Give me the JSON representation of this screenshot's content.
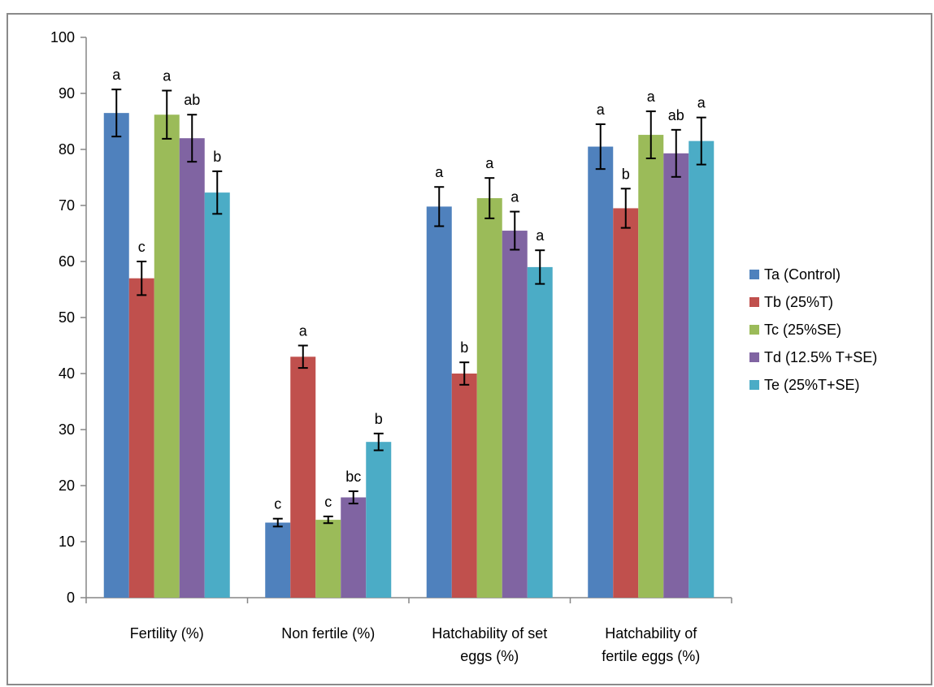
{
  "chart_data": {
    "type": "bar",
    "ylim": [
      0,
      100
    ],
    "yticks": [
      0,
      10,
      20,
      30,
      40,
      50,
      60,
      70,
      80,
      90,
      100
    ],
    "grid": false,
    "legend_position": "right",
    "categories": [
      [
        "Fertility (%)"
      ],
      [
        "Non fertile (%)"
      ],
      [
        "Hatchability of set",
        "eggs (%)"
      ],
      [
        "Hatchability of",
        "fertile eggs (%)"
      ]
    ],
    "series": [
      {
        "name": "Ta (Control)",
        "color": "#4f81bd",
        "values": [
          86.5,
          13.4,
          69.8,
          80.5
        ],
        "errors": [
          4.2,
          0.7,
          3.5,
          4.0
        ],
        "labels": [
          "a",
          "c",
          "a",
          "a"
        ]
      },
      {
        "name": "Tb (25%T)",
        "color": "#c0504d",
        "values": [
          57.0,
          43.0,
          40.0,
          69.5
        ],
        "errors": [
          3.0,
          2.0,
          2.0,
          3.5
        ],
        "labels": [
          "c",
          "a",
          "b",
          "b"
        ]
      },
      {
        "name": "Tc (25%SE)",
        "color": "#9bbb59",
        "values": [
          86.2,
          13.9,
          71.3,
          82.6
        ],
        "errors": [
          4.3,
          0.6,
          3.6,
          4.2
        ],
        "labels": [
          "a",
          "c",
          "a",
          "a"
        ]
      },
      {
        "name": "Td (12.5% T+SE)",
        "color": "#8064a2",
        "values": [
          82.0,
          17.9,
          65.5,
          79.3
        ],
        "errors": [
          4.2,
          1.1,
          3.4,
          4.2
        ],
        "labels": [
          "ab",
          "bc",
          "a",
          "ab"
        ]
      },
      {
        "name": "Te (25%T+SE)",
        "color": "#4bacc6",
        "values": [
          72.3,
          27.8,
          59.0,
          81.5
        ],
        "errors": [
          3.8,
          1.5,
          3.0,
          4.2
        ],
        "labels": [
          "b",
          "b",
          "a",
          "a"
        ]
      }
    ]
  }
}
